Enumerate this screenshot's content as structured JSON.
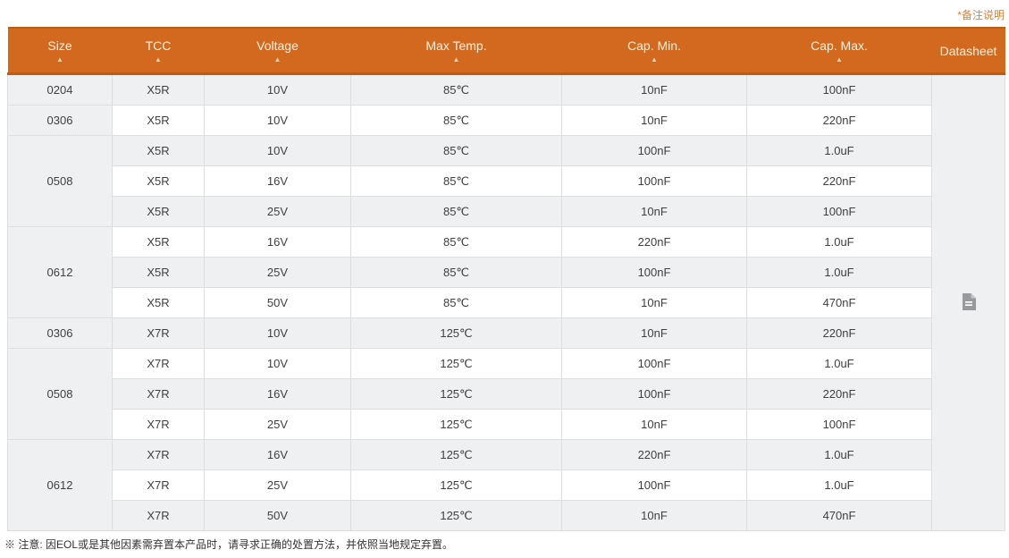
{
  "note_link": {
    "label": "*备注说明"
  },
  "footnote": "※ 注意: 因EOL或是其他因素需弃置本产品时，请寻求正确的处置方法，并依照当地规定弃置。",
  "colors": {
    "header_bg": "#d2691e",
    "header_border": "#bd5c13",
    "header_text": "#fbf2e3",
    "row_stripe": "#eef0f2",
    "link_orange": "#d9823b",
    "icon_grey": "#97999c"
  },
  "icons": {
    "sort_asc_glyph": "▲",
    "datasheet_icon_name": "file-text-icon"
  },
  "table": {
    "columns": [
      {
        "id": "size",
        "label": "Size",
        "sortable": true
      },
      {
        "id": "tcc",
        "label": "TCC",
        "sortable": true
      },
      {
        "id": "voltage",
        "label": "Voltage",
        "sortable": true
      },
      {
        "id": "max_temp",
        "label": "Max Temp.",
        "sortable": true
      },
      {
        "id": "cap_min",
        "label": "Cap. Min.",
        "sortable": true
      },
      {
        "id": "cap_max",
        "label": "Cap. Max.",
        "sortable": true
      },
      {
        "id": "datasheet",
        "label": "Datasheet",
        "sortable": false
      }
    ],
    "rows": [
      {
        "size": "0204",
        "size_rowspan": 1,
        "tcc": "X5R",
        "voltage": "10V",
        "max_temp": "85℃",
        "cap_min": "10nF",
        "cap_max": "100nF"
      },
      {
        "size": "0306",
        "size_rowspan": 1,
        "tcc": "X5R",
        "voltage": "10V",
        "max_temp": "85℃",
        "cap_min": "10nF",
        "cap_max": "220nF"
      },
      {
        "size": "0508",
        "size_rowspan": 3,
        "tcc": "X5R",
        "voltage": "10V",
        "max_temp": "85℃",
        "cap_min": "100nF",
        "cap_max": "1.0uF"
      },
      {
        "tcc": "X5R",
        "voltage": "16V",
        "max_temp": "85℃",
        "cap_min": "100nF",
        "cap_max": "220nF"
      },
      {
        "tcc": "X5R",
        "voltage": "25V",
        "max_temp": "85℃",
        "cap_min": "10nF",
        "cap_max": "100nF"
      },
      {
        "size": "0612",
        "size_rowspan": 3,
        "tcc": "X5R",
        "voltage": "16V",
        "max_temp": "85℃",
        "cap_min": "220nF",
        "cap_max": "1.0uF"
      },
      {
        "tcc": "X5R",
        "voltage": "25V",
        "max_temp": "85℃",
        "cap_min": "100nF",
        "cap_max": "1.0uF"
      },
      {
        "tcc": "X5R",
        "voltage": "50V",
        "max_temp": "85℃",
        "cap_min": "10nF",
        "cap_max": "470nF"
      },
      {
        "size": "0306",
        "size_rowspan": 1,
        "tcc": "X7R",
        "voltage": "10V",
        "max_temp": "125℃",
        "cap_min": "10nF",
        "cap_max": "220nF"
      },
      {
        "size": "0508",
        "size_rowspan": 3,
        "tcc": "X7R",
        "voltage": "10V",
        "max_temp": "125℃",
        "cap_min": "100nF",
        "cap_max": "1.0uF"
      },
      {
        "tcc": "X7R",
        "voltage": "16V",
        "max_temp": "125℃",
        "cap_min": "100nF",
        "cap_max": "220nF"
      },
      {
        "tcc": "X7R",
        "voltage": "25V",
        "max_temp": "125℃",
        "cap_min": "10nF",
        "cap_max": "100nF"
      },
      {
        "size": "0612",
        "size_rowspan": 3,
        "tcc": "X7R",
        "voltage": "16V",
        "max_temp": "125℃",
        "cap_min": "220nF",
        "cap_max": "1.0uF"
      },
      {
        "tcc": "X7R",
        "voltage": "25V",
        "max_temp": "125℃",
        "cap_min": "100nF",
        "cap_max": "1.0uF"
      },
      {
        "tcc": "X7R",
        "voltage": "50V",
        "max_temp": "125℃",
        "cap_min": "10nF",
        "cap_max": "470nF"
      }
    ]
  }
}
